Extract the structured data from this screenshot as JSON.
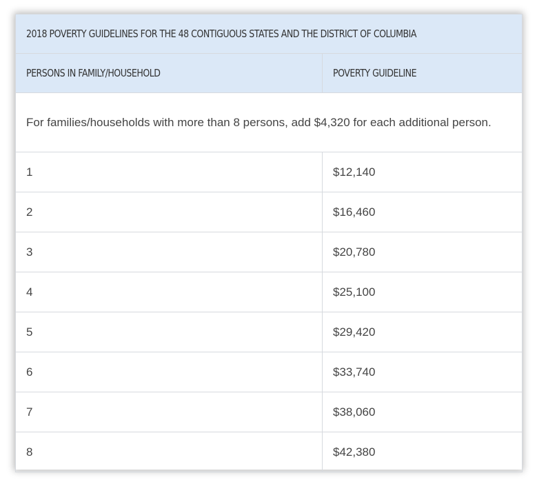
{
  "table": {
    "title": "2018 POVERTY GUIDELINES FOR THE 48 CONTIGUOUS STATES AND THE DISTRICT OF COLUMBIA",
    "headers": [
      "PERSONS IN FAMILY/HOUSEHOLD",
      "POVERTY GUIDELINE"
    ],
    "note": "For families/households with more than 8 persons, add $4,320 for each additional person.",
    "rows": [
      {
        "persons": "1",
        "guideline": "$12,140"
      },
      {
        "persons": "2",
        "guideline": "$16,460"
      },
      {
        "persons": "3",
        "guideline": "$20,780"
      },
      {
        "persons": "4",
        "guideline": "$25,100"
      },
      {
        "persons": "5",
        "guideline": "$29,420"
      },
      {
        "persons": "6",
        "guideline": "$33,740"
      },
      {
        "persons": "7",
        "guideline": "$38,060"
      },
      {
        "persons": "8",
        "guideline": "$42,380"
      }
    ]
  }
}
